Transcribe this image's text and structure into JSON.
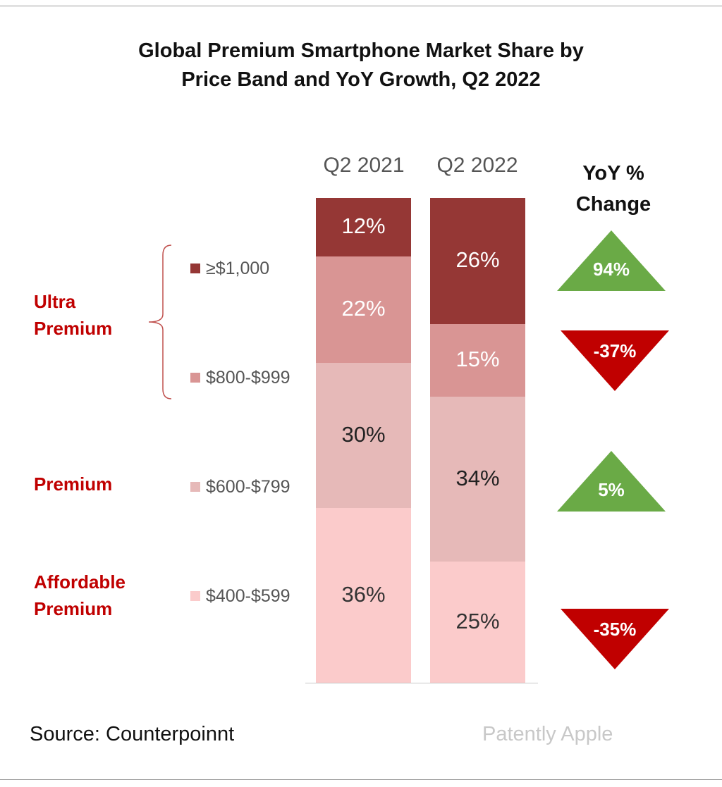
{
  "title_lines": [
    "Global Premium Smartphone Market Share by",
    "Price Band and YoY Growth, Q2 2022"
  ],
  "yoy_header_lines": [
    "YoY %",
    "Change"
  ],
  "groups": [
    {
      "lines": [
        "Ultra",
        "Premium"
      ]
    },
    {
      "lines": [
        "Premium"
      ]
    },
    {
      "lines": [
        "Affordable",
        "Premium"
      ]
    }
  ],
  "source": "Source: Counterpoinnt",
  "watermark": "Patently Apple",
  "colors": {
    "band_1000_plus": "#953735",
    "band_800_999": "#d99594",
    "band_600_799": "#e6b9b8",
    "band_400_599": "#fbcbcb",
    "up": "#6aaa46",
    "down": "#c00000",
    "group_label": "#c00000",
    "brace": "#c0504d"
  },
  "chart_data": {
    "type": "bar",
    "stacked": true,
    "percent_stacked": true,
    "title": "Global Premium Smartphone Market Share by Price Band and YoY Growth, Q2 2022",
    "categories": [
      "Q2 2021",
      "Q2 2022"
    ],
    "series": [
      {
        "name": "≥$1,000",
        "values": [
          12,
          26
        ],
        "labels": [
          "12%",
          "26%"
        ],
        "yoy": "94%",
        "yoy_direction": "up",
        "color": "#953735",
        "label_color": "#ffffff"
      },
      {
        "name": "$800-$999",
        "values": [
          22,
          15
        ],
        "labels": [
          "22%",
          "15%"
        ],
        "yoy": "-37%",
        "yoy_direction": "down",
        "color": "#d99594",
        "label_color": "#ffffff"
      },
      {
        "name": "$600-$799",
        "values": [
          30,
          34
        ],
        "labels": [
          "30%",
          "34%"
        ],
        "yoy": "5%",
        "yoy_direction": "up",
        "color": "#e6b9b8",
        "label_color": "#222222"
      },
      {
        "name": "$400-$599",
        "values": [
          36,
          25
        ],
        "labels": [
          "36%",
          "25%"
        ],
        "yoy": "-35%",
        "yoy_direction": "down",
        "color": "#fbcbcb",
        "label_color": "#333333"
      }
    ],
    "ylim": [
      0,
      100
    ],
    "legend": "left",
    "grid": false
  }
}
